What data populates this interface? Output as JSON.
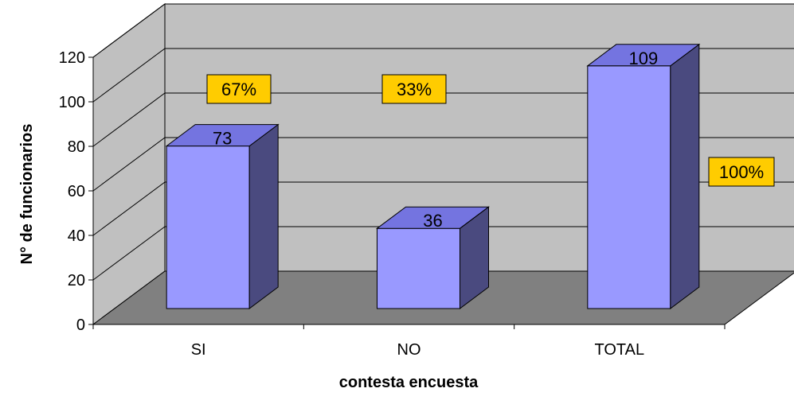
{
  "chart_data": {
    "type": "bar",
    "categories": [
      "SI",
      "NO",
      "TOTAL"
    ],
    "values": [
      73,
      36,
      109
    ],
    "value_labels": [
      "73",
      "36",
      "109"
    ],
    "percent_labels": [
      "67%",
      "33%",
      "100%"
    ],
    "xlabel": "contesta encuesta",
    "ylabel": "N° de funcionarios",
    "ylim": [
      0,
      120
    ],
    "yticks": [
      "0",
      "20",
      "40",
      "60",
      "80",
      "100",
      "120"
    ],
    "grid": true,
    "colors": {
      "bar_front": "#9999ff",
      "bar_top": "#7474e0",
      "bar_side": "#4a4a7f",
      "back_wall": "#c0c0c0",
      "side_wall": "#c0c0c0",
      "floor": "#808080",
      "percent_box": "#ffcc00"
    }
  }
}
